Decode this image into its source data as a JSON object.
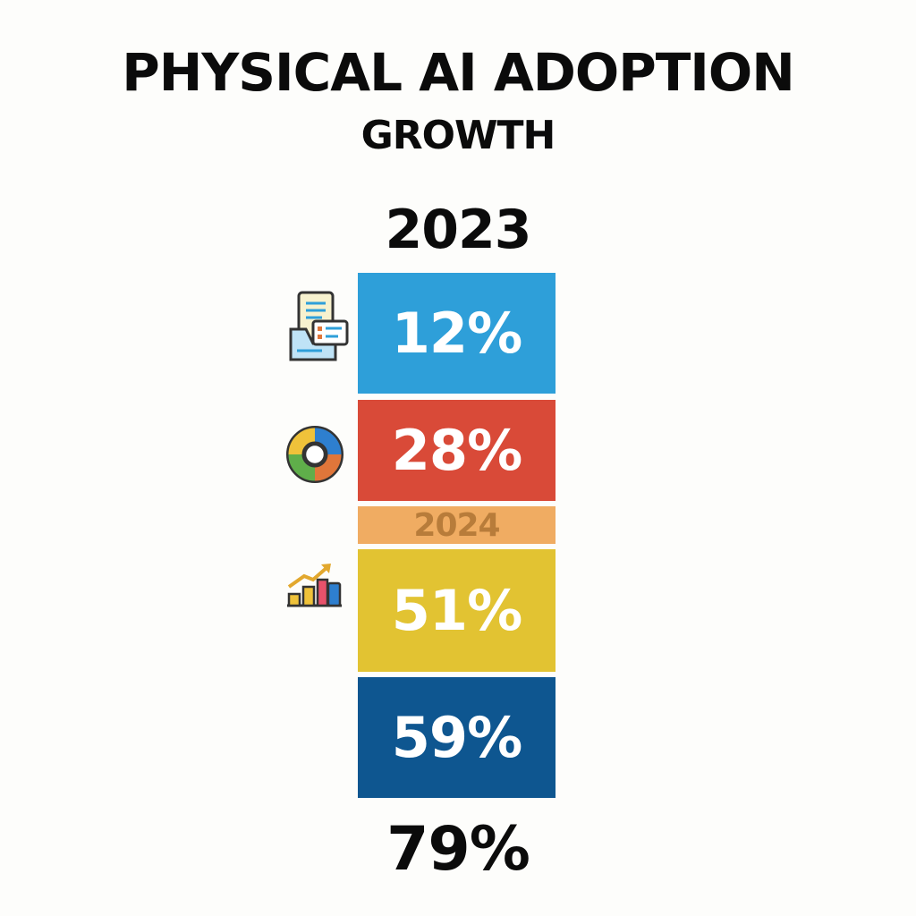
{
  "chart_data": {
    "type": "bar",
    "title": "PHYSICAL AI ADOPTION",
    "subtitle": "GROWTH",
    "top_label": "2023",
    "band_label": "2024",
    "bottom_value": "79%",
    "segments": [
      {
        "label": "12%",
        "value": 12,
        "color": "#2e9fd9",
        "icon": "document-form-icon"
      },
      {
        "label": "28%",
        "value": 28,
        "color": "#d94a38",
        "icon": "donut-chart-icon"
      },
      {
        "label": "51%",
        "value": 51,
        "color": "#e2c332",
        "icon": "bar-chart-trend-icon"
      },
      {
        "label": "59%",
        "value": 59,
        "color": "#0e5690",
        "icon": ""
      }
    ],
    "band_color": "#f0ac62"
  }
}
